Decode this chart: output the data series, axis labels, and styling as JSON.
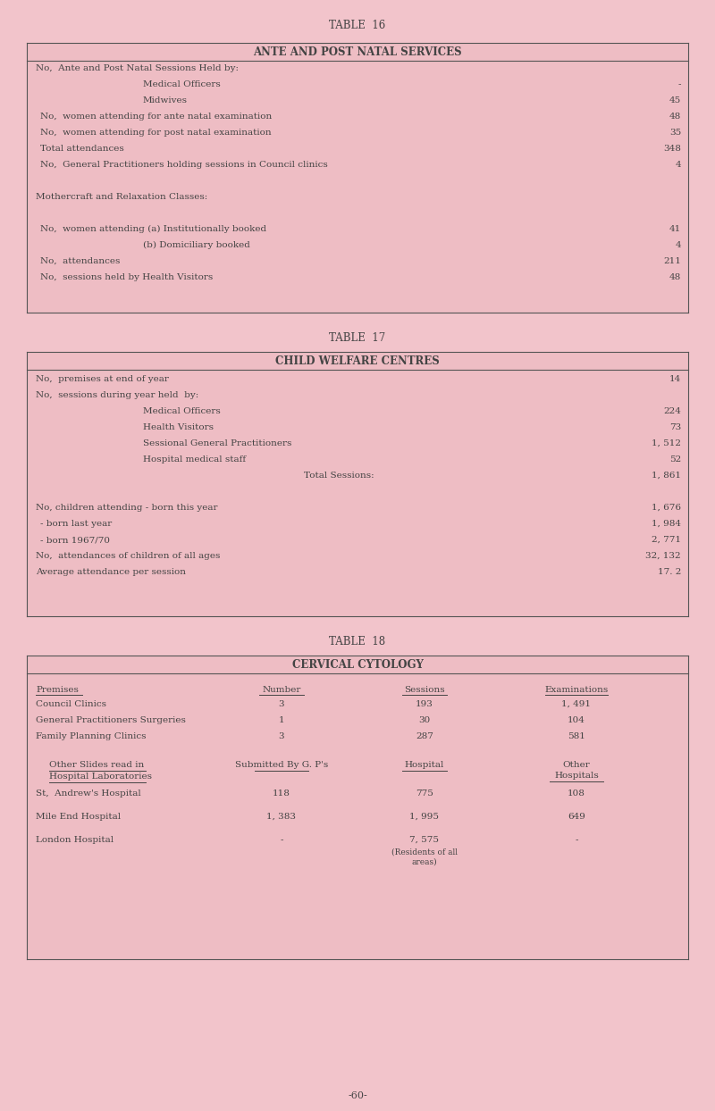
{
  "page_bg": "#f2c4cb",
  "box_bg": "#eebdc4",
  "box_edge": "#555555",
  "text_color": "#444444",
  "footer": "-60-",
  "table16_title": "TABLE  16",
  "table16_header": "ANTE AND POST NATAL SERVICES",
  "table16_rows": [
    {
      "label": "No,  Ante and Post Natal Sessions Held by:",
      "value": "",
      "indent": 0
    },
    {
      "label": "Medical Officers",
      "dots": true,
      "value": "-",
      "indent": 2
    },
    {
      "label": "Midwives",
      "dots": true,
      "value": "45",
      "indent": 2
    },
    {
      "label": "No,  women attending for ante natal examination",
      "dots": true,
      "value": "48",
      "indent": 1
    },
    {
      "label": "No,  women attending for post natal examination",
      "dots": true,
      "value": "35",
      "indent": 1
    },
    {
      "label": "Total attendances",
      "dots": true,
      "value": "348",
      "indent": 1
    },
    {
      "label": "No,  General Practitioners holding sessions in Council clinics",
      "dots": true,
      "value": "4",
      "indent": 1
    },
    {
      "label": "",
      "value": "",
      "indent": 0
    },
    {
      "label": "Mothercraft and Relaxation Classes:",
      "value": "",
      "indent": 0
    },
    {
      "label": "",
      "value": "",
      "indent": 0
    },
    {
      "label": "No,  women attending (a) Institutionally booked",
      "dots": true,
      "value": "41",
      "indent": 1
    },
    {
      "label": "(b) Domiciliary booked",
      "dots": true,
      "value": "4",
      "indent": 2
    },
    {
      "label": "No,  attendances",
      "dots": true,
      "value": "211",
      "indent": 1
    },
    {
      "label": "No,  sessions held by Health Visitors",
      "dots": true,
      "value": "48",
      "indent": 1
    }
  ],
  "table17_title": "TABLE  17",
  "table17_header": "CHILD WELFARE CENTRES",
  "table17_rows": [
    {
      "label": "No,  premises at end of year",
      "dots": true,
      "value": "14",
      "indent": 0
    },
    {
      "label": "No,  sessions during year held  by:",
      "dots": true,
      "value": "",
      "indent": 0
    },
    {
      "label": "Medical Officers",
      "dots": true,
      "value": "224",
      "indent": 2
    },
    {
      "label": "Health Visitors",
      "dots": true,
      "value": "73",
      "indent": 2
    },
    {
      "label": "Sessional General Practitioners",
      "dots": true,
      "value": "1, 512",
      "indent": 2
    },
    {
      "label": "Hospital medical staff",
      "dots": true,
      "value": "52",
      "indent": 2
    },
    {
      "label": "",
      "special": "Total Sessions:",
      "value": "1, 861",
      "indent": 0
    },
    {
      "label": "",
      "value": "",
      "indent": 0
    },
    {
      "label": "No, children attending - born this year",
      "dots": true,
      "value": "1, 676",
      "indent": 0
    },
    {
      "label": "- born last year",
      "dots": true,
      "value": "1, 984",
      "indent": 1
    },
    {
      "label": "- born 1967/70",
      "dots": true,
      "value": "2, 771",
      "indent": 1
    },
    {
      "label": "No,  attendances of children of all ages",
      "dots": true,
      "value": "32, 132",
      "indent": 0
    },
    {
      "label": "Average attendance per session",
      "dots": true,
      "value": "17. 2",
      "indent": 0
    }
  ],
  "table18_title": "TABLE  18",
  "table18_header": "CERVICAL CYTOLOGY",
  "table18_col_headers": [
    "Premises",
    "Number",
    "Sessions",
    "Examinations"
  ],
  "table18_main_rows": [
    [
      "Council Clinics",
      "3",
      "193",
      "1, 491"
    ],
    [
      "General Practitioners Surgeries",
      "1",
      "30",
      "104"
    ],
    [
      "Family Planning Clinics",
      "3",
      "287",
      "581"
    ]
  ],
  "table18_hospital_rows": [
    [
      "St,  Andrew's Hospital",
      "118",
      "775",
      "108"
    ],
    [
      "Mile End Hospital",
      "1, 383",
      "1, 995",
      "649"
    ],
    [
      "London Hospital",
      "-",
      "7, 575",
      "-"
    ]
  ],
  "table18_note": "(Residents of all\nareas)"
}
